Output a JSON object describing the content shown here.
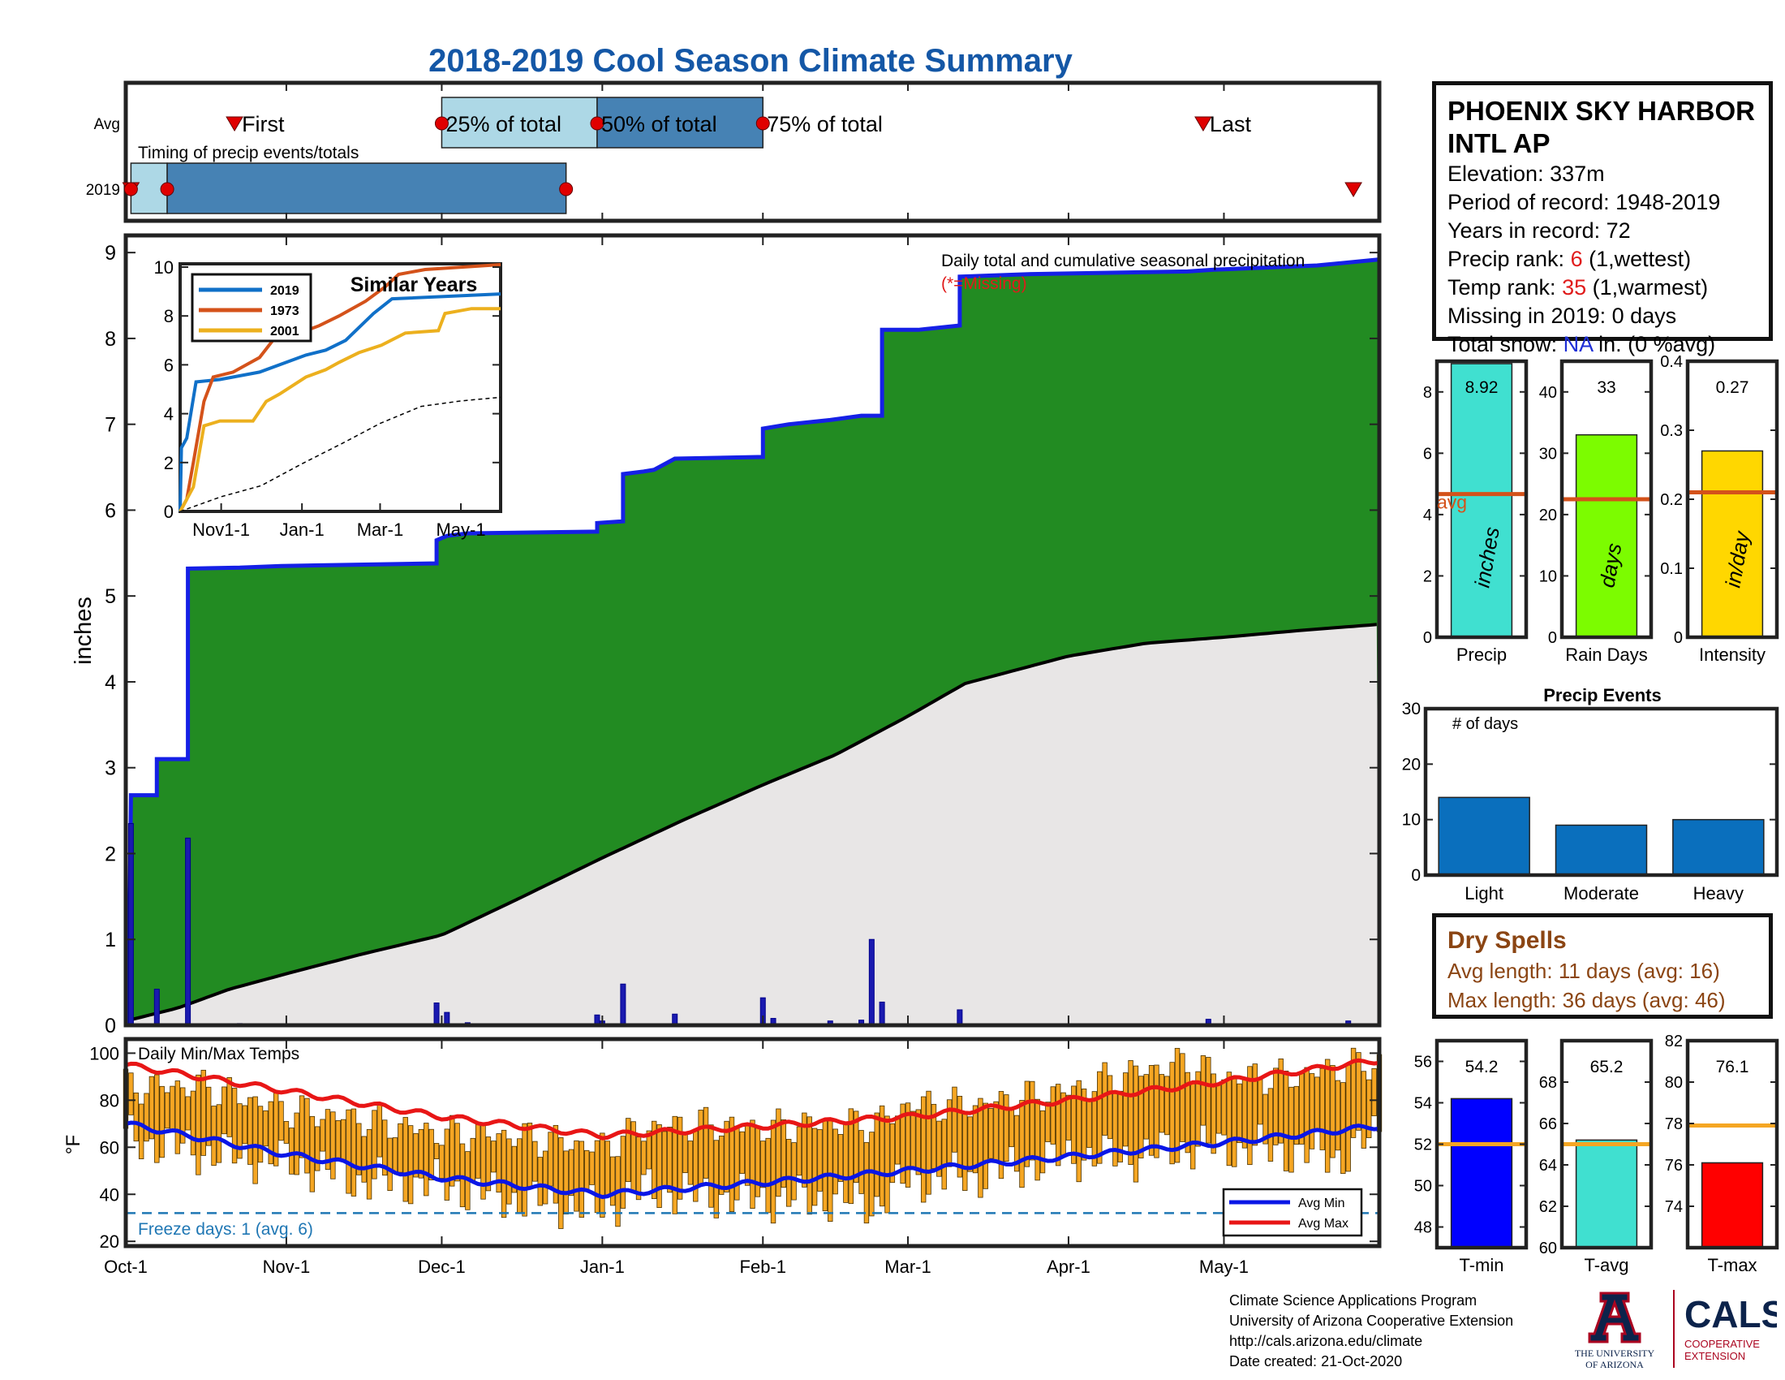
{
  "title": "2018-2019 Cool Season Climate Summary",
  "station": {
    "name_line1": "PHOENIX SKY HARBOR",
    "name_line2": "INTL AP",
    "elevation": "Elevation: 337m",
    "period": "Period of record: 1948-2019",
    "years": "Years in record: 72",
    "precip_rank_label": "Precip rank: ",
    "precip_rank_value": "6",
    "precip_rank_note": " (1,wettest)",
    "temp_rank_label": "Temp rank: ",
    "temp_rank_value": "35",
    "temp_rank_note": " (1,warmest)",
    "missing": "Missing in 2019: 0 days",
    "snow_label": "Total snow: ",
    "snow_value": "NA",
    "snow_note": " in. (0 %avg)"
  },
  "timing": {
    "subtitle": "Timing of precip events/totals",
    "row_labels": [
      "Avg",
      "2019"
    ],
    "avg_labels": {
      "first": "First",
      "p25": "25% of total",
      "p50": "50% of total",
      "p75": "75% of total",
      "last": "Last"
    },
    "avg_days": {
      "first": 21,
      "p25": 61,
      "p50": 91,
      "p75": 123,
      "last": 208
    },
    "season_days": [
      0,
      242
    ],
    "y2019_days": {
      "first": 1,
      "p25": 8,
      "p50": 8,
      "p75": 85,
      "last": 237
    }
  },
  "x_ticks": [
    {
      "label": "Oct-1",
      "day": 0
    },
    {
      "label": "Nov-1",
      "day": 31
    },
    {
      "label": "Dec-1",
      "day": 61
    },
    {
      "label": "Jan-1",
      "day": 92
    },
    {
      "label": "Feb-1",
      "day": 123
    },
    {
      "label": "Mar-1",
      "day": 151
    },
    {
      "label": "Apr-1",
      "day": 182
    },
    {
      "label": "May-1",
      "day": 212
    }
  ],
  "chart_data": [
    {
      "type": "area",
      "title": "Daily total and cumulative seasonal precipitation",
      "missing_note": "(*=Missing)",
      "ylabel": "inches",
      "ylim": [
        0,
        9.2
      ],
      "yticks": [
        0,
        1,
        2,
        3,
        4,
        5,
        6,
        7,
        8,
        9
      ],
      "xlim_days": [
        0,
        242
      ],
      "cumulative_2019": [
        [
          0,
          0
        ],
        [
          0.5,
          0
        ],
        [
          1,
          2.68
        ],
        [
          6,
          2.68
        ],
        [
          6,
          3.1
        ],
        [
          12,
          3.1
        ],
        [
          12,
          5.32
        ],
        [
          22,
          5.33
        ],
        [
          30,
          5.35
        ],
        [
          60,
          5.38
        ],
        [
          60,
          5.65
        ],
        [
          62,
          5.7
        ],
        [
          66,
          5.73
        ],
        [
          91,
          5.75
        ],
        [
          91,
          5.85
        ],
        [
          96,
          5.87
        ],
        [
          96,
          6.42
        ],
        [
          100,
          6.45
        ],
        [
          102,
          6.47
        ],
        [
          106,
          6.6
        ],
        [
          123,
          6.62
        ],
        [
          123,
          6.95
        ],
        [
          128,
          7.0
        ],
        [
          136,
          7.05
        ],
        [
          142,
          7.1
        ],
        [
          146,
          7.1
        ],
        [
          146,
          8.1
        ],
        [
          153,
          8.1
        ],
        [
          161,
          8.15
        ],
        [
          161,
          8.72
        ],
        [
          175,
          8.75
        ],
        [
          205,
          8.78
        ],
        [
          210,
          8.8
        ],
        [
          230,
          8.85
        ],
        [
          242,
          8.92
        ]
      ],
      "cumulative_avg": [
        [
          0,
          0.05
        ],
        [
          10,
          0.2
        ],
        [
          20,
          0.42
        ],
        [
          31,
          0.6
        ],
        [
          45,
          0.82
        ],
        [
          61,
          1.05
        ],
        [
          75,
          1.45
        ],
        [
          92,
          1.95
        ],
        [
          108,
          2.4
        ],
        [
          123,
          2.8
        ],
        [
          137,
          3.15
        ],
        [
          151,
          3.6
        ],
        [
          162,
          3.98
        ],
        [
          182,
          4.3
        ],
        [
          197,
          4.45
        ],
        [
          212,
          4.52
        ],
        [
          227,
          4.6
        ],
        [
          242,
          4.67
        ]
      ],
      "daily_precip": [
        [
          1,
          2.35
        ],
        [
          6,
          0.42
        ],
        [
          12,
          2.18
        ],
        [
          22,
          0.02
        ],
        [
          60,
          0.26
        ],
        [
          62,
          0.15
        ],
        [
          66,
          0.03
        ],
        [
          91,
          0.12
        ],
        [
          92,
          0.05
        ],
        [
          96,
          0.48
        ],
        [
          106,
          0.13
        ],
        [
          123,
          0.32
        ],
        [
          125,
          0.08
        ],
        [
          136,
          0.05
        ],
        [
          142,
          0.06
        ],
        [
          144,
          1.0
        ],
        [
          146,
          0.27
        ],
        [
          161,
          0.18
        ],
        [
          209,
          0.07
        ],
        [
          236,
          0.05
        ]
      ],
      "series": [
        {
          "name": "2019",
          "color": "#1520e6",
          "fill": "#228b22"
        },
        {
          "name": "avg",
          "color": "#000000",
          "fill": "#e8e6e6"
        }
      ]
    },
    {
      "type": "line",
      "title": "Similar Years",
      "ylim": [
        0,
        10
      ],
      "yticks": [
        0,
        2,
        4,
        6,
        8,
        10
      ],
      "xticklabels": [
        "Nov1-1",
        "Jan-1",
        "Mar-1",
        "May-1"
      ],
      "series": [
        {
          "name": "2019",
          "color": "#1070c8",
          "points": [
            [
              0,
              0
            ],
            [
              1,
              2.6
            ],
            [
              5,
              3.0
            ],
            [
              12,
              5.3
            ],
            [
              30,
              5.4
            ],
            [
              60,
              5.7
            ],
            [
              95,
              6.4
            ],
            [
              110,
              6.6
            ],
            [
              125,
              7.0
            ],
            [
              146,
              8.1
            ],
            [
              160,
              8.7
            ],
            [
              242,
              8.9
            ]
          ]
        },
        {
          "name": "1973",
          "color": "#d4521a",
          "points": [
            [
              0,
              0
            ],
            [
              5,
              0.5
            ],
            [
              10,
              2.0
            ],
            [
              18,
              4.5
            ],
            [
              25,
              5.5
            ],
            [
              40,
              5.7
            ],
            [
              50,
              6.0
            ],
            [
              60,
              6.3
            ],
            [
              70,
              7.0
            ],
            [
              80,
              7.4
            ],
            [
              95,
              7.4
            ],
            [
              105,
              7.6
            ],
            [
              120,
              8.0
            ],
            [
              140,
              8.6
            ],
            [
              155,
              9.2
            ],
            [
              165,
              9.7
            ],
            [
              185,
              9.9
            ],
            [
              242,
              10.1
            ]
          ]
        },
        {
          "name": "2001",
          "color": "#ecb01e",
          "points": [
            [
              0,
              0
            ],
            [
              10,
              1.0
            ],
            [
              18,
              3.5
            ],
            [
              30,
              3.7
            ],
            [
              55,
              3.7
            ],
            [
              65,
              4.5
            ],
            [
              75,
              4.8
            ],
            [
              95,
              5.5
            ],
            [
              110,
              5.8
            ],
            [
              120,
              6.1
            ],
            [
              135,
              6.5
            ],
            [
              152,
              6.8
            ],
            [
              170,
              7.3
            ],
            [
              195,
              7.4
            ],
            [
              200,
              8.1
            ],
            [
              220,
              8.3
            ],
            [
              242,
              8.3
            ]
          ]
        },
        {
          "name": "avg",
          "color": "#000000",
          "points": [
            [
              0,
              0
            ],
            [
              31,
              0.6
            ],
            [
              61,
              1.05
            ],
            [
              92,
              1.95
            ],
            [
              123,
              2.8
            ],
            [
              151,
              3.6
            ],
            [
              182,
              4.3
            ],
            [
              212,
              4.52
            ],
            [
              242,
              4.67
            ]
          ]
        }
      ]
    },
    {
      "type": "bar",
      "title": "",
      "categories": [
        "Precip"
      ],
      "values": [
        8.92
      ],
      "value_label": "8.92",
      "unit_label": "inches",
      "avg_label": "avg",
      "avg": 4.67,
      "ylim": [
        0,
        9
      ],
      "yticks": [
        0,
        2,
        4,
        6,
        8
      ],
      "color": "#40e0d0"
    },
    {
      "type": "bar",
      "categories": [
        "Rain Days"
      ],
      "values": [
        33
      ],
      "value_label": "33",
      "unit_label": "days",
      "avg": 22.5,
      "ylim": [
        0,
        45
      ],
      "yticks": [
        0,
        10,
        20,
        30,
        40
      ],
      "color": "#7cfc00"
    },
    {
      "type": "bar",
      "categories": [
        "Intensity"
      ],
      "values": [
        0.27
      ],
      "value_label": "0.27",
      "unit_label": "in/day",
      "avg": 0.21,
      "ylim": [
        0,
        0.4
      ],
      "yticks": [
        0,
        0.1,
        0.2,
        0.3,
        0.4
      ],
      "ytick_labels": [
        "0",
        "0.1",
        "0.2",
        "0.3",
        "0.4"
      ],
      "color": "#ffd700"
    },
    {
      "type": "bar",
      "title": "Precip Events",
      "subtitle": "# of days",
      "categories": [
        "Light",
        "Moderate",
        "Heavy"
      ],
      "values": [
        14,
        9,
        10
      ],
      "ylim": [
        0,
        30
      ],
      "yticks": [
        0,
        10,
        20,
        30
      ],
      "color": "#0a6fbd"
    },
    {
      "type": "bar",
      "title": "Daily Min/Max Temps",
      "ylabel": "°F",
      "ylim": [
        18,
        106
      ],
      "yticks": [
        20,
        40,
        60,
        80,
        100
      ],
      "freeze_note": "Freeze days: 1 (avg. 6)",
      "freeze_line": 32,
      "legend": [
        "Avg Min",
        "Avg Max"
      ],
      "avg_min": [
        [
          0,
          70
        ],
        [
          31,
          57
        ],
        [
          61,
          47
        ],
        [
          92,
          40
        ],
        [
          123,
          45
        ],
        [
          151,
          50
        ],
        [
          182,
          56
        ],
        [
          212,
          62
        ],
        [
          242,
          69
        ]
      ],
      "avg_max": [
        [
          0,
          95
        ],
        [
          31,
          84
        ],
        [
          61,
          73
        ],
        [
          92,
          65
        ],
        [
          123,
          69
        ],
        [
          151,
          73
        ],
        [
          182,
          80
        ],
        [
          212,
          88
        ],
        [
          242,
          97
        ]
      ],
      "daily_ranges": [
        [
          0,
          64,
          86
        ],
        [
          15,
          58,
          86
        ],
        [
          31,
          54,
          76
        ],
        [
          45,
          46,
          72
        ],
        [
          61,
          44,
          66
        ],
        [
          75,
          38,
          65
        ],
        [
          92,
          34,
          60
        ],
        [
          100,
          42,
          68
        ],
        [
          110,
          40,
          70
        ],
        [
          123,
          38,
          68
        ],
        [
          135,
          38,
          70
        ],
        [
          145,
          36,
          70
        ],
        [
          151,
          46,
          78
        ],
        [
          165,
          48,
          78
        ],
        [
          182,
          56,
          84
        ],
        [
          195,
          56,
          92
        ],
        [
          205,
          60,
          96
        ],
        [
          212,
          60,
          90
        ],
        [
          225,
          58,
          90
        ],
        [
          235,
          56,
          94
        ],
        [
          242,
          66,
          96
        ]
      ]
    },
    {
      "type": "bar",
      "categories": [
        "T-min"
      ],
      "values": [
        54.2
      ],
      "value_label": "54.2",
      "avg": 52.0,
      "ylim": [
        47,
        57
      ],
      "yticks": [
        48,
        50,
        52,
        54,
        56
      ],
      "color": "#0000ff"
    },
    {
      "type": "bar",
      "categories": [
        "T-avg"
      ],
      "values": [
        65.2
      ],
      "value_label": "65.2",
      "avg": 65.0,
      "ylim": [
        60,
        70
      ],
      "yticks": [
        60,
        62,
        64,
        66,
        68
      ],
      "color": "#40e0d0"
    },
    {
      "type": "bar",
      "categories": [
        "T-max"
      ],
      "values": [
        76.1
      ],
      "value_label": "76.1",
      "avg": 77.9,
      "ylim": [
        72,
        82
      ],
      "yticks": [
        74,
        76,
        78,
        80,
        82
      ],
      "color": "#ff0000"
    }
  ],
  "dry_spells": {
    "title": "Dry Spells",
    "avg_length": "Avg length: 11 days (avg: 16)",
    "max_length": "Max length: 36 days (avg: 46)"
  },
  "credits": {
    "line1": "Climate Science Applications Program",
    "line2": "University of Arizona Cooperative Extension",
    "line3": "http://cals.arizona.edu/climate",
    "line4": " Date created: 21-Oct-2020"
  },
  "logos": {
    "ua_line1": "THE UNIVERSITY",
    "ua_line2": "OF ARIZONA",
    "cals_main": "CALS",
    "cals_line1": "COOPERATIVE",
    "cals_line2": "EXTENSION"
  },
  "colors": {
    "title": "#1457a6",
    "green_fill": "#228b22",
    "avg_fill": "#e8e6e6",
    "line2019": "#1520e6",
    "avg_line_orange": "#f5a623",
    "avg_line_brick": "#d4521a",
    "temp_bar": "#f5a623"
  }
}
